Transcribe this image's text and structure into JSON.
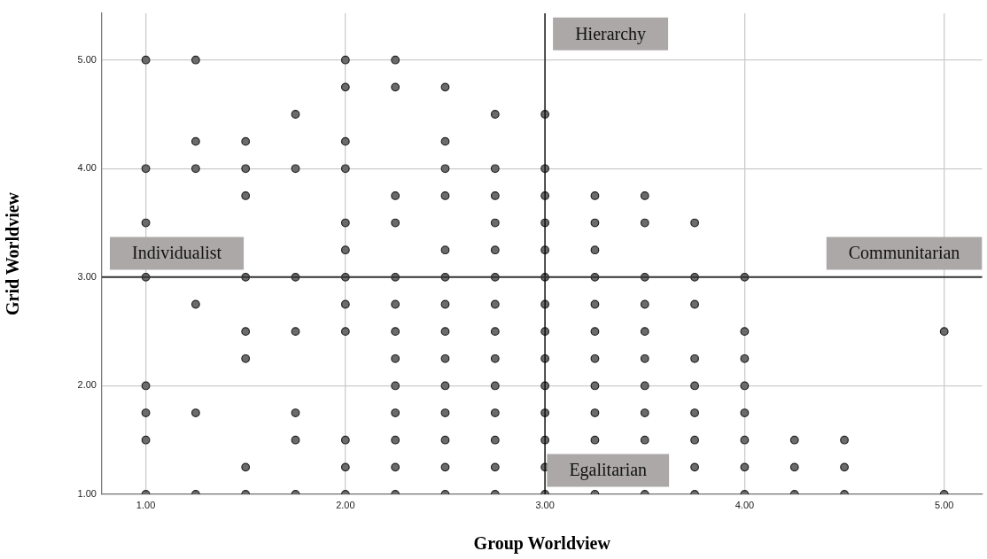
{
  "chart_data": {
    "type": "scatter",
    "xlabel": "Group Worldview",
    "ylabel": "Grid Worldview",
    "annotations": [
      "Hierarchy",
      "Individualist",
      "Communitarian",
      "Egalitarian"
    ],
    "series": [
      {
        "color": "#6b6b6b",
        "x": [
          1,
          1,
          1,
          1,
          1,
          1,
          1,
          1,
          1.25,
          1.25,
          1.25,
          1.25,
          1.25,
          1.25,
          1.5,
          1.5,
          1.5,
          1.5,
          1.5,
          1.5,
          1.5,
          1.5,
          1.75,
          1.75,
          1.75,
          1.75,
          1.75,
          1.75,
          1.75,
          2,
          2,
          2,
          2,
          2,
          2,
          2,
          2,
          2,
          2,
          2,
          2,
          2.25,
          2.25,
          2.25,
          2.25,
          2.25,
          2.25,
          2.25,
          2.25,
          2.25,
          2.25,
          2.25,
          2.25,
          2.25,
          2.5,
          2.5,
          2.5,
          2.5,
          2.5,
          2.5,
          2.5,
          2.5,
          2.5,
          2.5,
          2.5,
          2.5,
          2.5,
          2.5,
          2.75,
          2.75,
          2.75,
          2.75,
          2.75,
          2.75,
          2.75,
          2.75,
          2.75,
          2.75,
          2.75,
          2.75,
          2.75,
          2.75,
          3,
          3,
          3,
          3,
          3,
          3,
          3,
          3,
          3,
          3,
          3,
          3,
          3,
          3,
          3.25,
          3.25,
          3.25,
          3.25,
          3.25,
          3.25,
          3.25,
          3.25,
          3.25,
          3.25,
          3.25,
          3.5,
          3.5,
          3.5,
          3.5,
          3.5,
          3.5,
          3.5,
          3.5,
          3.5,
          3.5,
          3.75,
          3.75,
          3.75,
          3.75,
          3.75,
          3.75,
          3.75,
          3.75,
          3.75,
          4,
          4,
          4,
          4,
          4,
          4,
          4,
          4,
          4.25,
          4.25,
          4.25,
          4.5,
          4.5,
          4.5,
          5,
          5
        ],
        "values": [
          5,
          4,
          3.5,
          3,
          2,
          1.75,
          1.5,
          1,
          5,
          4.25,
          4,
          2.75,
          1.75,
          1,
          4.25,
          4,
          3.75,
          3,
          2.5,
          2.25,
          1.25,
          1,
          4.5,
          4,
          3,
          2.5,
          1.75,
          1.5,
          1,
          5,
          4.75,
          4.25,
          4,
          3.5,
          3.25,
          3,
          2.75,
          2.5,
          1.5,
          1.25,
          1,
          5,
          4.75,
          3.75,
          3.5,
          3,
          2.75,
          2.5,
          2.25,
          2,
          1.75,
          1.5,
          1.25,
          1,
          4.75,
          4.25,
          4,
          3.75,
          3.25,
          3,
          2.75,
          2.5,
          2.25,
          2,
          1.75,
          1.5,
          1.25,
          1,
          4.5,
          4,
          3.75,
          3.5,
          3.25,
          3,
          2.75,
          2.5,
          2.25,
          2,
          1.75,
          1.5,
          1.25,
          1,
          4.5,
          4,
          3.75,
          3.5,
          3.25,
          3,
          2.75,
          2.5,
          2.25,
          2,
          1.75,
          1.5,
          1.25,
          1,
          3.75,
          3.5,
          3.25,
          3,
          2.75,
          2.5,
          2.25,
          2,
          1.75,
          1.5,
          1,
          3.75,
          3.5,
          3,
          2.75,
          2.5,
          2.25,
          2,
          1.75,
          1.5,
          1,
          3.5,
          3,
          2.75,
          2.25,
          2,
          1.75,
          1.5,
          1.25,
          1,
          3,
          2.5,
          2.25,
          2,
          1.75,
          1.5,
          1.25,
          1,
          1.5,
          1.25,
          1,
          1.5,
          1.25,
          1,
          2.5,
          1
        ]
      }
    ],
    "xlim": [
      0.78,
      5.19
    ],
    "ylim": [
      1,
      5.43
    ],
    "xticks": [
      {
        "value": 1,
        "label": "1.00"
      },
      {
        "value": 2,
        "label": "2.00"
      },
      {
        "value": 3,
        "label": "3.00"
      },
      {
        "value": 4,
        "label": "4.00"
      },
      {
        "value": 5,
        "label": "5.00"
      }
    ],
    "yticks": [
      {
        "value": 1,
        "label": "1.00"
      },
      {
        "value": 2,
        "label": "2.00"
      },
      {
        "value": 3,
        "label": "3.00"
      },
      {
        "value": 4,
        "label": "4.00"
      },
      {
        "value": 5,
        "label": "5.00"
      }
    ],
    "ref_lines": [
      {
        "axis": "x",
        "value": 3,
        "color": "#000000"
      },
      {
        "axis": "y",
        "value": 3,
        "color": "#333333"
      }
    ],
    "grid": true,
    "marker": "circle",
    "legend": false
  }
}
